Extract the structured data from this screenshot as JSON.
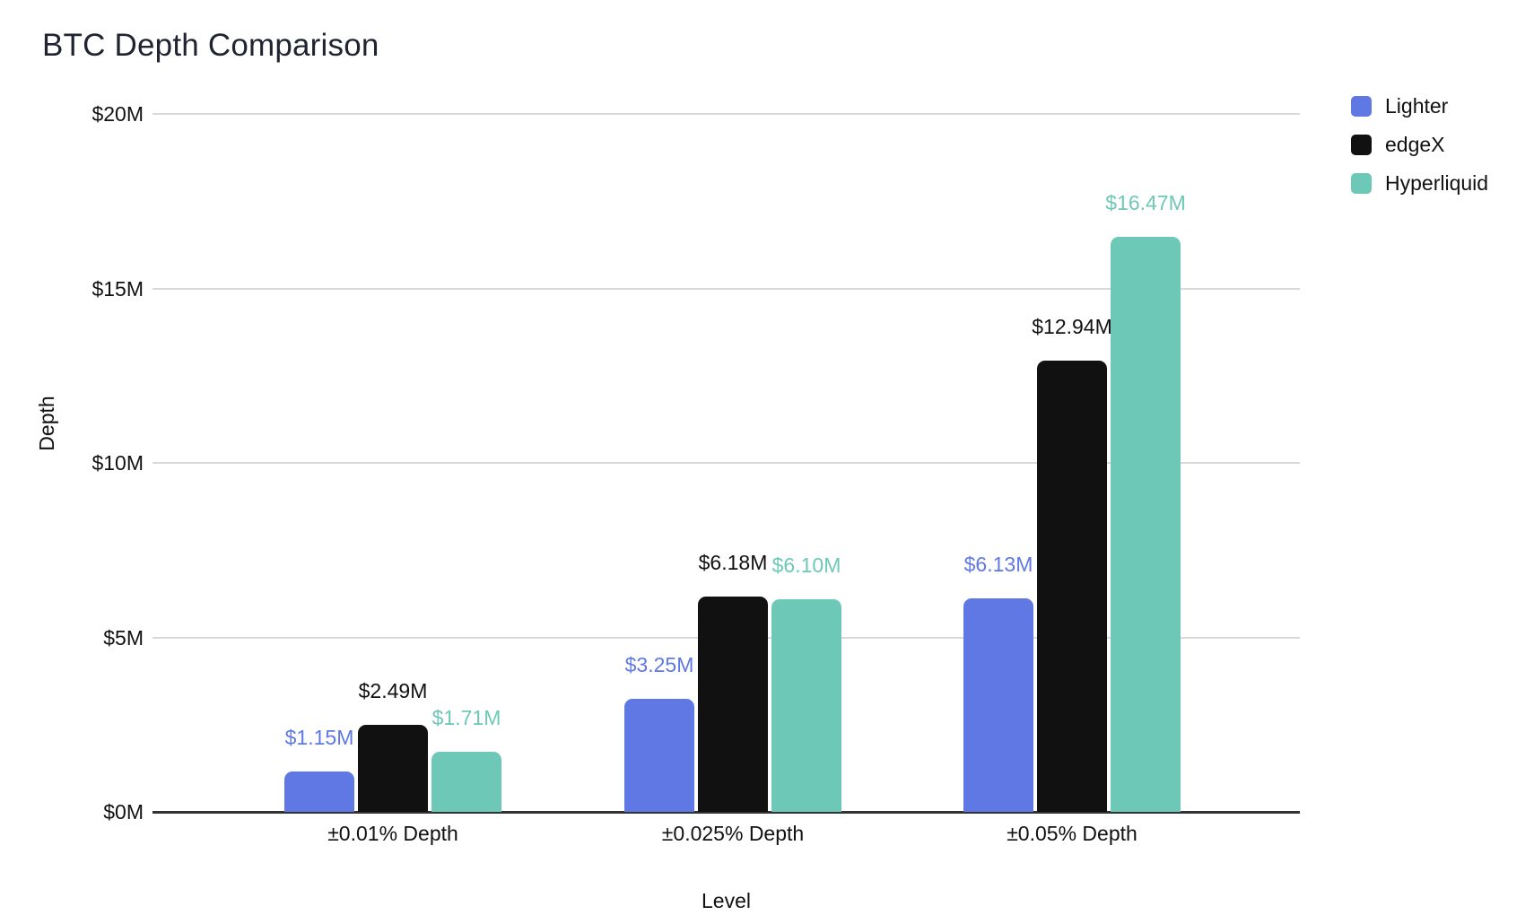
{
  "chart_data": {
    "type": "bar",
    "title": "BTC Depth Comparison",
    "xlabel": "Level",
    "ylabel": "Depth",
    "categories": [
      "±0.01% Depth",
      "±0.025% Depth",
      "±0.05% Depth"
    ],
    "series": [
      {
        "name": "Lighter",
        "color": "#5f78e4",
        "values": [
          1.15,
          3.25,
          6.13
        ],
        "labels": [
          "$1.15M",
          "$3.25M",
          "$6.13M"
        ]
      },
      {
        "name": "edgeX",
        "color": "#111111",
        "values": [
          2.49,
          6.18,
          12.94
        ],
        "labels": [
          "$2.49M",
          "$6.18M",
          "$12.94M"
        ]
      },
      {
        "name": "Hyperliquid",
        "color": "#6ec8b8",
        "values": [
          1.71,
          6.1,
          16.47
        ],
        "labels": [
          "$1.71M",
          "$6.10M",
          "$16.47M"
        ]
      }
    ],
    "y_ticks": [
      {
        "value": 0,
        "label": "$0M"
      },
      {
        "value": 5,
        "label": "$5M"
      },
      {
        "value": 10,
        "label": "$10M"
      },
      {
        "value": 15,
        "label": "$15M"
      },
      {
        "value": 20,
        "label": "$20M"
      }
    ],
    "ylim": [
      0,
      20
    ],
    "grid": "horizontal",
    "legend_position": "top-right",
    "colors": {
      "background": "#ffffff",
      "gridline": "#d9d9d9",
      "axis_line": "#333333",
      "tick_text": "#111111",
      "title_text": "#1f2430"
    }
  }
}
